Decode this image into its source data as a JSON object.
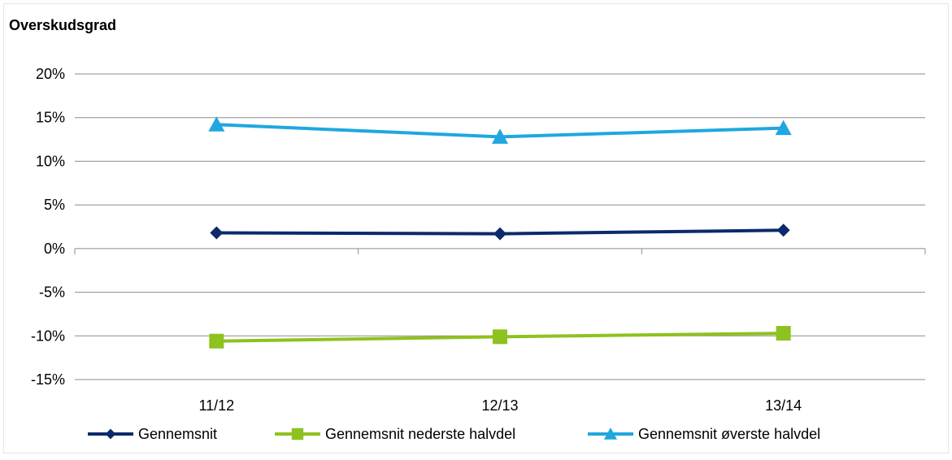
{
  "chart_data": {
    "type": "line",
    "title": "Overskudsgrad",
    "categories": [
      "11/12",
      "12/13",
      "13/14"
    ],
    "ylim": [
      -15,
      20
    ],
    "yticks": [
      20,
      15,
      10,
      5,
      0,
      -5,
      -10,
      -15
    ],
    "ytick_labels": [
      "20%",
      "15%",
      "10%",
      "5%",
      "0%",
      "-5%",
      "-10%",
      "-15%"
    ],
    "grid": true,
    "legend_position": "bottom",
    "series": [
      {
        "name": "Gennemsnit",
        "values": [
          1.8,
          1.7,
          2.1
        ],
        "color": "#0b2a6b",
        "marker": "diamond"
      },
      {
        "name": "Gennemsnit nederste halvdel",
        "values": [
          -10.6,
          -10.1,
          -9.7
        ],
        "color": "#8dc21f",
        "marker": "square"
      },
      {
        "name": "Gennemsnit øverste halvdel",
        "values": [
          14.2,
          12.8,
          13.8
        ],
        "color": "#1fa7df",
        "marker": "triangle"
      }
    ]
  }
}
